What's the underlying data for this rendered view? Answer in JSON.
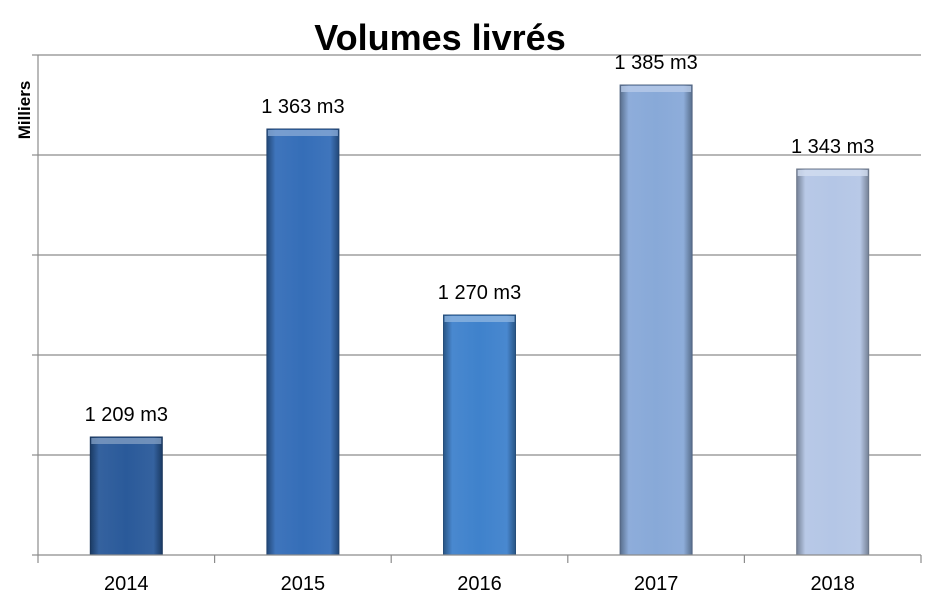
{
  "chart_data": {
    "type": "bar",
    "title": "Volumes livrés",
    "ylabel": "Milliers",
    "xlabel": "",
    "categories": [
      "2014",
      "2015",
      "2016",
      "2017",
      "2018"
    ],
    "values": [
      1209,
      1363,
      1270,
      1385,
      1343
    ],
    "data_labels": [
      "1 209 m3",
      "1 363 m3",
      "1 270 m3",
      "1 385 m3",
      "1 343 m3"
    ],
    "ylim": [
      1150,
      1400
    ],
    "ytick_step": 50,
    "ytick_labels_visible": false,
    "grid": true,
    "legend": "none",
    "bar_colors": [
      "#2a5a9a",
      "#356eb8",
      "#3f82cc",
      "#88a9d8",
      "#b4c6e6"
    ]
  }
}
